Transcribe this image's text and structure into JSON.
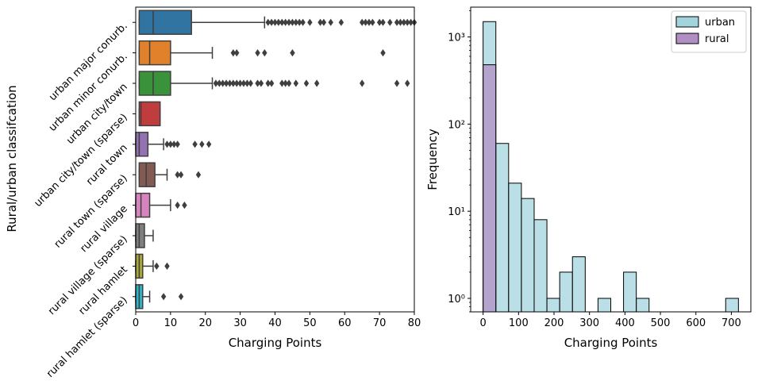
{
  "chart_data": [
    {
      "type": "box",
      "orientation": "horizontal",
      "xlabel": "Charging Points",
      "ylabel": "Rural/urban classifcation",
      "xlim": [
        0,
        80
      ],
      "xticks": [
        0,
        10,
        20,
        30,
        40,
        50,
        60,
        70,
        80
      ],
      "categories": [
        "urban major conurb.",
        "urban minor conurb.",
        "urban city/town",
        "urban city/town (sparse)",
        "rural town",
        "rural town (sparse)",
        "rural village",
        "rural village (sparse)",
        "rural hamlet",
        "rural hamlet (sparse)"
      ],
      "colors": [
        "#3274a1",
        "#e1812c",
        "#3a923a",
        "#c03d3e",
        "#9372b2",
        "#845b53",
        "#d684bd",
        "#7f7f7f",
        "#a9aa35",
        "#2eb4c4"
      ],
      "boxes": [
        {
          "whislo": 1,
          "q1": 1,
          "median": 5,
          "q3": 16,
          "whishi": 37,
          "fliers": [
            38,
            39,
            40,
            41,
            42,
            43,
            44,
            45,
            46,
            47,
            48,
            50,
            53,
            54,
            56,
            59,
            65,
            66,
            67,
            68,
            70,
            71,
            73,
            75,
            76,
            77,
            78,
            79,
            80
          ]
        },
        {
          "whislo": 1,
          "q1": 1,
          "median": 4,
          "q3": 10,
          "whishi": 22,
          "fliers": [
            28,
            29,
            35,
            37,
            45,
            71
          ]
        },
        {
          "whislo": 1,
          "q1": 1,
          "median": 5,
          "q3": 10,
          "whishi": 22,
          "fliers": [
            23,
            24,
            25,
            26,
            27,
            28,
            29,
            30,
            31,
            32,
            33,
            35,
            36,
            38,
            39,
            42,
            43,
            44,
            46,
            49,
            52,
            65,
            75,
            78
          ]
        },
        {
          "whislo": 1,
          "q1": 1,
          "median": 1.5,
          "q3": 7,
          "whishi": 7,
          "fliers": []
        },
        {
          "whislo": 0,
          "q1": 0,
          "median": 1,
          "q3": 3.5,
          "whishi": 8,
          "fliers": [
            9,
            10,
            11,
            12,
            17,
            19,
            21
          ]
        },
        {
          "whislo": 1,
          "q1": 1,
          "median": 3,
          "q3": 5.5,
          "whishi": 9,
          "fliers": [
            12,
            13,
            18
          ]
        },
        {
          "whislo": 0,
          "q1": 0,
          "median": 1.5,
          "q3": 4,
          "whishi": 10,
          "fliers": [
            12,
            14
          ]
        },
        {
          "whislo": 0,
          "q1": 0,
          "median": 1,
          "q3": 2.5,
          "whishi": 5,
          "fliers": []
        },
        {
          "whislo": 0,
          "q1": 0,
          "median": 1,
          "q3": 2,
          "whishi": 5,
          "fliers": [
            6,
            9
          ]
        },
        {
          "whislo": 0,
          "q1": 0,
          "median": 1,
          "q3": 2,
          "whishi": 4,
          "fliers": [
            8,
            13
          ]
        }
      ]
    },
    {
      "type": "histogram",
      "xlabel": "Charging Points",
      "ylabel": "Frequency",
      "yscale": "log",
      "xlim": [
        -35,
        755
      ],
      "ylim": [
        0.7,
        2200
      ],
      "xticks": [
        0,
        100,
        200,
        300,
        400,
        500,
        600,
        700
      ],
      "yticks": [
        1,
        10,
        100,
        1000
      ],
      "ytick_labels": [
        "10⁰",
        "10¹",
        "10²",
        "10³"
      ],
      "legend_position": "upper right",
      "series": [
        {
          "name": "urban",
          "color": "#a3d4dd",
          "bins": [
            [
              0,
              36,
              1500
            ],
            [
              36,
              72,
              60
            ],
            [
              72,
              108,
              21
            ],
            [
              108,
              144,
              14
            ],
            [
              144,
              180,
              8
            ],
            [
              180,
              216,
              1
            ],
            [
              216,
              252,
              2
            ],
            [
              252,
              288,
              3
            ],
            [
              324,
              360,
              1
            ],
            [
              396,
              432,
              2
            ],
            [
              432,
              468,
              1
            ],
            [
              684,
              720,
              1
            ]
          ]
        },
        {
          "name": "rural",
          "color": "#b08fc4",
          "bins": [
            [
              0,
              36,
              480
            ]
          ]
        }
      ]
    }
  ]
}
